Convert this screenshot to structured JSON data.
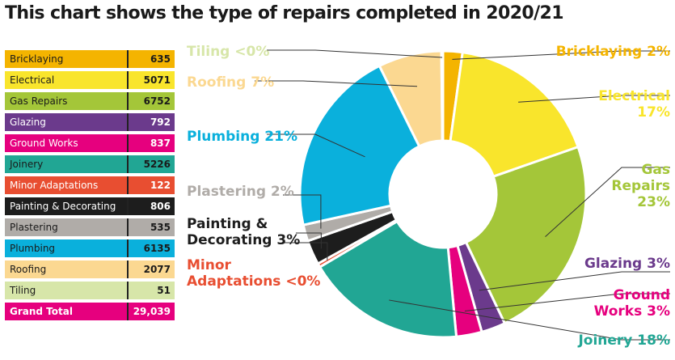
{
  "title": "This chart shows the type of repairs completed in 2020/21",
  "table": {
    "rows": [
      {
        "name": "Bricklaying",
        "value": "635",
        "color": "#f4b400",
        "text_color": "#1a1a1a"
      },
      {
        "name": "Electrical",
        "value": "5071",
        "color": "#f9e52c",
        "text_color": "#1a1a1a"
      },
      {
        "name": "Gas Repairs",
        "value": "6752",
        "color": "#a4c639",
        "text_color": "#1a1a1a"
      },
      {
        "name": "Glazing",
        "value": "792",
        "color": "#6b3a8c",
        "text_color": "#ffffff"
      },
      {
        "name": "Ground Works",
        "value": "837",
        "color": "#e6007e",
        "text_color": "#ffffff"
      },
      {
        "name": "Joinery",
        "value": "5226",
        "color": "#21a694",
        "text_color": "#1a1a1a"
      },
      {
        "name": "Minor Adaptations",
        "value": "122",
        "color": "#e84e31",
        "text_color": "#ffffff"
      },
      {
        "name": "Painting & Decorating",
        "value": "806",
        "color": "#1d1d1d",
        "text_color": "#ffffff"
      },
      {
        "name": "Plastering",
        "value": "535",
        "color": "#b0aca8",
        "text_color": "#1a1a1a"
      },
      {
        "name": "Plumbing",
        "value": "6135",
        "color": "#0ab0dc",
        "text_color": "#1a1a1a"
      },
      {
        "name": "Roofing",
        "value": "2077",
        "color": "#fbd891",
        "text_color": "#1a1a1a"
      },
      {
        "name": "Tiling",
        "value": "51",
        "color": "#d7e6a9",
        "text_color": "#1a1a1a"
      }
    ],
    "total": {
      "name": "Grand Total",
      "value": "29,039",
      "color": "#e6007e",
      "text_color": "#ffffff"
    }
  },
  "chart_data": {
    "type": "pie",
    "donut": true,
    "title": "This chart shows the type of repairs completed in 2020/21",
    "categories": [
      "Bricklaying",
      "Electrical",
      "Gas Repairs",
      "Glazing",
      "Ground Works",
      "Joinery",
      "Minor Adaptations",
      "Painting & Decorating",
      "Plastering",
      "Plumbing",
      "Roofing",
      "Tiling"
    ],
    "values": [
      635,
      5071,
      6752,
      792,
      837,
      5226,
      122,
      806,
      535,
      6135,
      2077,
      51
    ],
    "colors": [
      "#f4b400",
      "#f9e52c",
      "#a4c639",
      "#6b3a8c",
      "#e6007e",
      "#21a694",
      "#e84e31",
      "#1d1d1d",
      "#b0aca8",
      "#0ab0dc",
      "#fbd891",
      "#d7e6a9"
    ],
    "total": "29,039",
    "slice_labels": [
      {
        "lines": [
          "Bricklaying 2%"
        ],
        "color": "#f4b400"
      },
      {
        "lines": [
          "Electrical",
          "17%"
        ],
        "color": "#f9e52c"
      },
      {
        "lines": [
          "Gas",
          "Repairs",
          "23%"
        ],
        "color": "#a4c639"
      },
      {
        "lines": [
          "Glazing 3%"
        ],
        "color": "#6b3a8c"
      },
      {
        "lines": [
          "Ground",
          "Works 3%"
        ],
        "color": "#e6007e"
      },
      {
        "lines": [
          "Joinery 18%"
        ],
        "color": "#21a694"
      },
      {
        "lines": [
          "Minor",
          "Adaptations <0%"
        ],
        "color": "#e84e31"
      },
      {
        "lines": [
          "Painting &",
          "Decorating 3%"
        ],
        "color": "#1d1d1d"
      },
      {
        "lines": [
          "Plastering 2%"
        ],
        "color": "#b0aca8"
      },
      {
        "lines": [
          "Plumbing 21%"
        ],
        "color": "#0ab0dc"
      },
      {
        "lines": [
          "Roofing 7%"
        ],
        "color": "#fbd891"
      },
      {
        "lines": [
          "Tiling <0%"
        ],
        "color": "#d7e6a9"
      }
    ]
  }
}
